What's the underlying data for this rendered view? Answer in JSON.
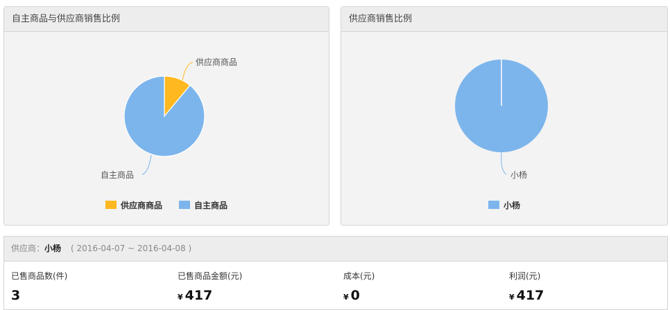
{
  "left_chart": {
    "title": "自主商品与供应商销售比例",
    "chart_data": {
      "type": "pie",
      "slices": [
        {
          "name": "供应商商品",
          "value": 11,
          "color": "#ffb81f"
        },
        {
          "name": "自主商品",
          "value": 89,
          "color": "#7cb5ec"
        }
      ],
      "legend": "bottom"
    }
  },
  "right_chart": {
    "title": "供应商销售比例",
    "chart_data": {
      "type": "pie",
      "slices": [
        {
          "name": "小杨",
          "value": 100,
          "color": "#7cb5ec"
        }
      ],
      "legend": "bottom"
    }
  },
  "summary": {
    "supplier_label": "供应商：",
    "supplier": "小杨",
    "date_range": "( 2016-04-07 ~ 2016-04-08 )",
    "currency": "¥",
    "stats": [
      {
        "label": "已售商品数(件)",
        "value": "3",
        "currency": false
      },
      {
        "label": "已售商品金额(元)",
        "value": "417",
        "currency": true
      },
      {
        "label": "成本(元)",
        "value": "0",
        "currency": true
      },
      {
        "label": "利润(元)",
        "value": "417",
        "currency": true
      }
    ]
  }
}
